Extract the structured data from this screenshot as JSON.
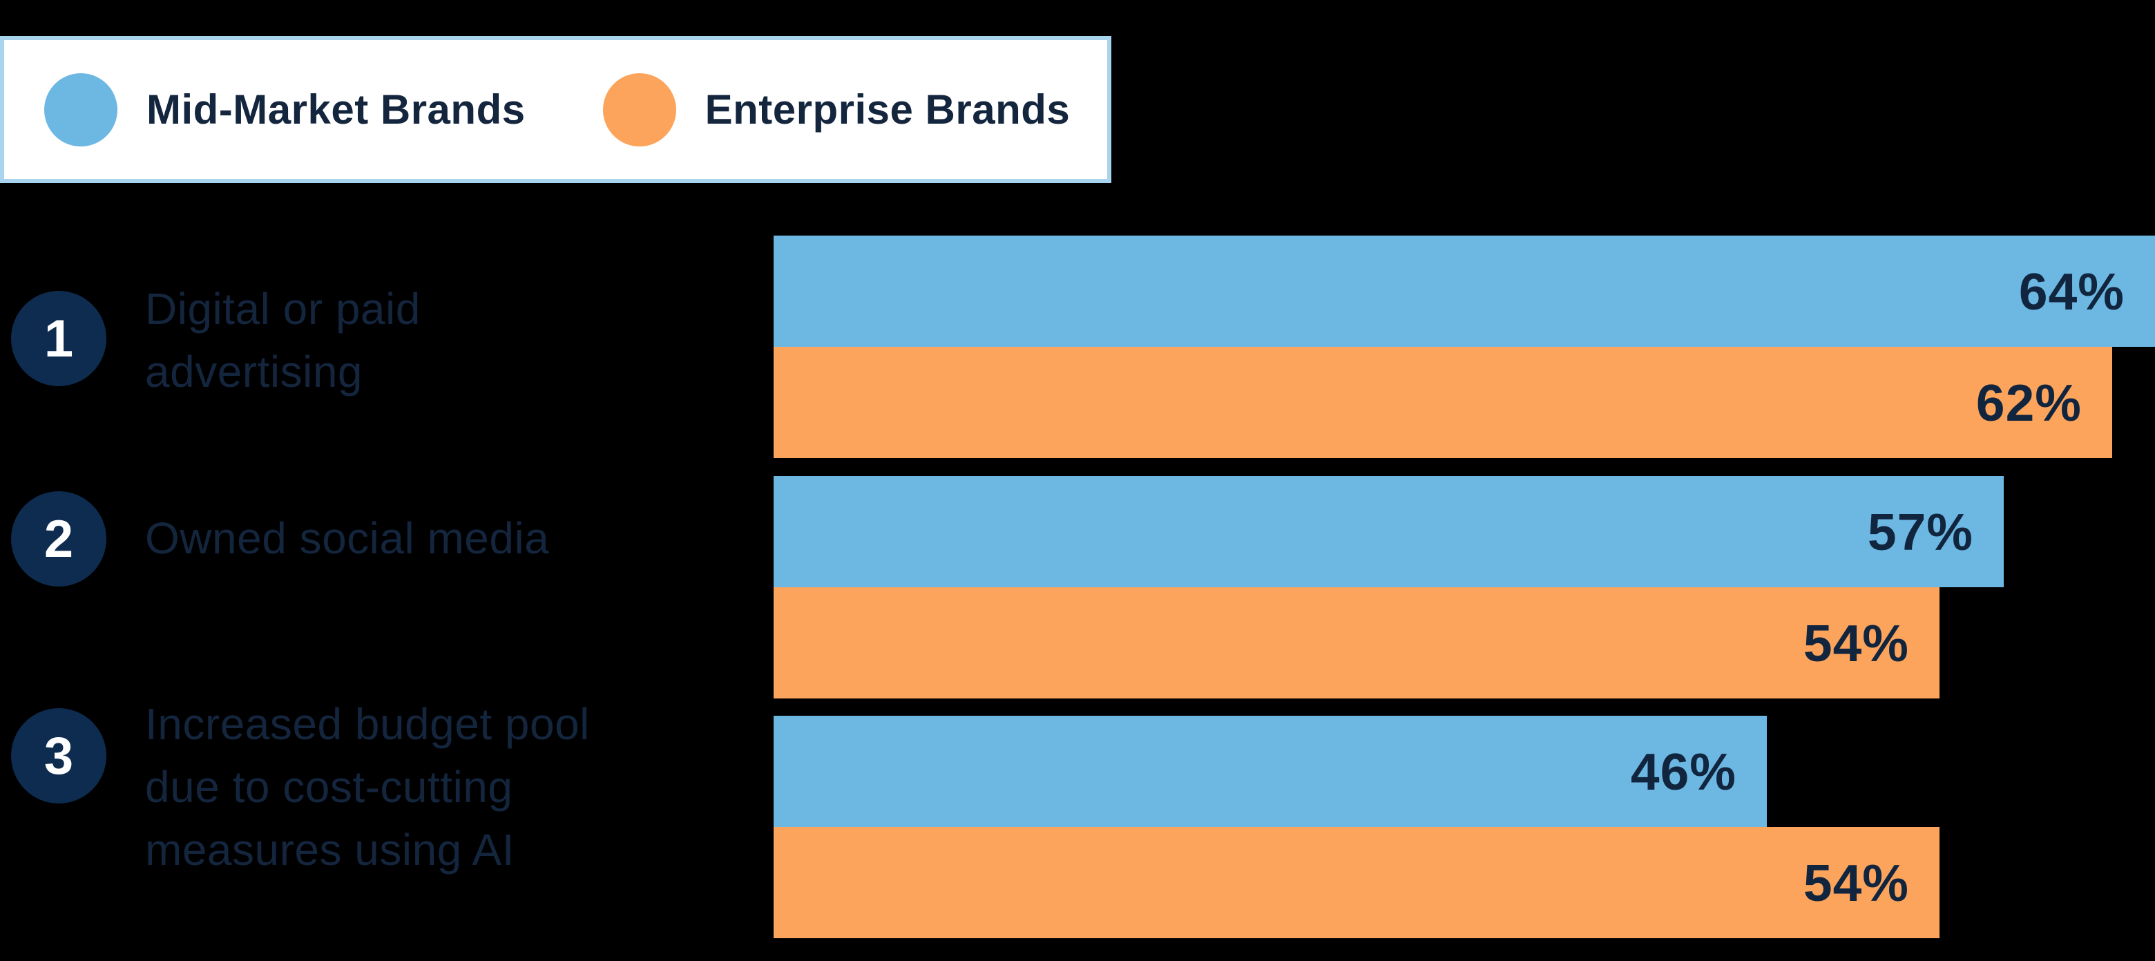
{
  "legend": {
    "items": [
      {
        "label": "Mid-Market Brands",
        "color": "#6CB8E3"
      },
      {
        "label": "Enterprise Brands",
        "color": "#FCA45B"
      }
    ]
  },
  "chart_data": {
    "type": "bar",
    "orientation": "horizontal",
    "title": "",
    "unit": "%",
    "xlim": [
      0,
      64
    ],
    "grid": false,
    "legend_position": "top-left",
    "categories": [
      "Digital or paid advertising",
      "Owned social media",
      "Increased budget pool due to cost-cutting measures using AI"
    ],
    "series": [
      {
        "key": "mid_market",
        "name": "Mid-Market Brands",
        "color": "#6CB8E3",
        "values": [
          64,
          57,
          46
        ]
      },
      {
        "key": "enterprise",
        "name": "Enterprise Brands",
        "color": "#FCA45B",
        "values": [
          62,
          54,
          54
        ]
      }
    ],
    "rows": [
      {
        "rank": "1",
        "label_lines": [
          "Digital or paid",
          "advertising"
        ],
        "mid_market": 64,
        "enterprise": 62,
        "mid_market_label": "64%",
        "enterprise_label": "62%"
      },
      {
        "rank": "2",
        "label_lines": [
          "Owned social media"
        ],
        "mid_market": 57,
        "enterprise": 54,
        "mid_market_label": "57%",
        "enterprise_label": "54%"
      },
      {
        "rank": "3",
        "label_lines": [
          "Increased budget pool",
          "due to cost-cutting",
          "measures using AI"
        ],
        "mid_market": 46,
        "enterprise": 54,
        "mid_market_label": "46%",
        "enterprise_label": "54%"
      }
    ]
  },
  "colors": {
    "background": "#000000",
    "mid_market_blue": "#6CB8E3",
    "enterprise_orange": "#FCA45B",
    "badge_navy": "#0E2C50",
    "badge_number": "#FFFFFF",
    "text_navy": "#14253E",
    "value_navy": "#12253F",
    "legend_border": "#A9D4EE",
    "legend_background": "#FFFFFF"
  }
}
